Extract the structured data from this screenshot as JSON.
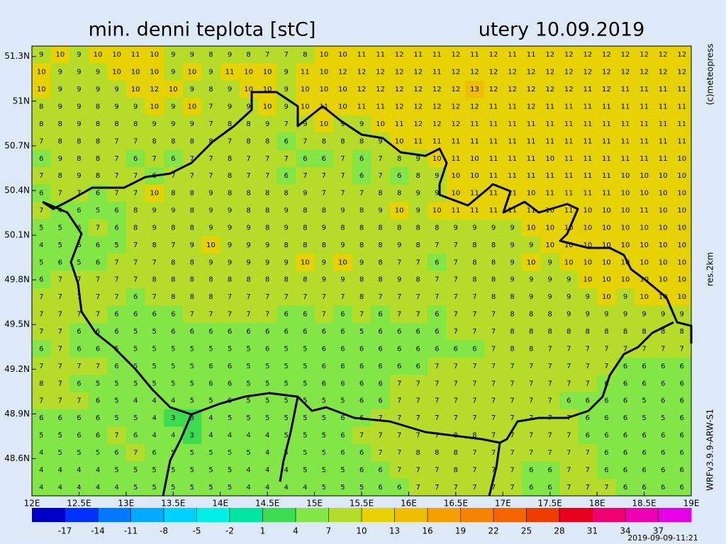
{
  "title": "min. denni teplota [stC]",
  "date": "utery 10.09.2019",
  "credit": "(c)meteopress",
  "resolution": "res.2km",
  "model": "WRFv3.9.9-ARW-S1",
  "timestamp": "2019-09-09-11:21",
  "map": {
    "xlim": [
      12,
      19
    ],
    "ylim": [
      48.35,
      51.37
    ],
    "xticks": [
      {
        "value": 12,
        "label": "12E"
      },
      {
        "value": 12.5,
        "label": "12.5E"
      },
      {
        "value": 13,
        "label": "13E"
      },
      {
        "value": 13.5,
        "label": "13.5E"
      },
      {
        "value": 14,
        "label": "14E"
      },
      {
        "value": 14.5,
        "label": "14.5E"
      },
      {
        "value": 15,
        "label": "15E"
      },
      {
        "value": 15.5,
        "label": "15.5E"
      },
      {
        "value": 16,
        "label": "16E"
      },
      {
        "value": 16.5,
        "label": "16.5E"
      },
      {
        "value": 17,
        "label": "17E"
      },
      {
        "value": 17.5,
        "label": "17.5E"
      },
      {
        "value": 18,
        "label": "18E"
      },
      {
        "value": 18.5,
        "label": "18.5E"
      },
      {
        "value": 19,
        "label": "19E"
      }
    ],
    "yticks": [
      {
        "value": 48.6,
        "label": "48.6N"
      },
      {
        "value": 48.9,
        "label": "48.9N"
      },
      {
        "value": 49.2,
        "label": "49.2N"
      },
      {
        "value": 49.5,
        "label": "49.5N"
      },
      {
        "value": 49.8,
        "label": "49.8N"
      },
      {
        "value": 50.1,
        "label": "50.1N"
      },
      {
        "value": 50.4,
        "label": "50.4N"
      },
      {
        "value": 50.7,
        "label": "50.7N"
      },
      {
        "value": 51,
        "label": "51N"
      },
      {
        "value": 51.3,
        "label": "51.3N"
      }
    ],
    "grid": [
      [
        9,
        10,
        9,
        10,
        10,
        11,
        10,
        9,
        9,
        8,
        9,
        8,
        7,
        7,
        8,
        10,
        10,
        11,
        11,
        12,
        11,
        11,
        12,
        11,
        12,
        11,
        11,
        12,
        12,
        12,
        12,
        12,
        12,
        12,
        12
      ],
      [
        10,
        9,
        9,
        9,
        10,
        10,
        10,
        9,
        10,
        9,
        11,
        10,
        10,
        9,
        11,
        10,
        12,
        12,
        12,
        12,
        12,
        11,
        12,
        12,
        12,
        12,
        12,
        12,
        12,
        12,
        12,
        12,
        12,
        12,
        12
      ],
      [
        10,
        9,
        9,
        9,
        9,
        10,
        12,
        10,
        9,
        8,
        9,
        10,
        10,
        9,
        10,
        10,
        10,
        12,
        12,
        12,
        12,
        12,
        12,
        13,
        12,
        12,
        12,
        12,
        12,
        11,
        12,
        11,
        11,
        11,
        11
      ],
      [
        8,
        9,
        9,
        8,
        9,
        9,
        10,
        9,
        10,
        7,
        9,
        9,
        10,
        9,
        10,
        11,
        10,
        11,
        11,
        12,
        12,
        12,
        12,
        12,
        11,
        11,
        12,
        11,
        11,
        11,
        11,
        11,
        11,
        11,
        11
      ],
      [
        8,
        8,
        9,
        8,
        8,
        8,
        9,
        9,
        9,
        7,
        8,
        8,
        9,
        7,
        9,
        10,
        9,
        9,
        10,
        11,
        12,
        12,
        12,
        11,
        11,
        11,
        11,
        11,
        11,
        11,
        11,
        11,
        11,
        11,
        11
      ],
      [
        7,
        8,
        8,
        8,
        7,
        7,
        8,
        8,
        8,
        8,
        7,
        8,
        8,
        6,
        7,
        8,
        8,
        8,
        9,
        10,
        11,
        11,
        11,
        11,
        11,
        11,
        11,
        11,
        11,
        11,
        11,
        11,
        11,
        11,
        11
      ],
      [
        6,
        9,
        8,
        8,
        7,
        6,
        7,
        6,
        7,
        7,
        8,
        7,
        7,
        7,
        6,
        6,
        7,
        6,
        7,
        8,
        9,
        10,
        11,
        10,
        11,
        11,
        11,
        10,
        11,
        11,
        11,
        11,
        11,
        11,
        10
      ],
      [
        7,
        8,
        9,
        8,
        7,
        7,
        6,
        7,
        7,
        7,
        8,
        7,
        7,
        6,
        7,
        7,
        7,
        6,
        7,
        6,
        8,
        9,
        10,
        10,
        11,
        11,
        11,
        11,
        11,
        11,
        11,
        10,
        10,
        10,
        10
      ],
      [
        6,
        7,
        7,
        6,
        7,
        7,
        10,
        8,
        8,
        9,
        8,
        8,
        8,
        8,
        9,
        7,
        7,
        7,
        8,
        8,
        9,
        9,
        10,
        11,
        11,
        11,
        10,
        11,
        11,
        11,
        11,
        10,
        10,
        10,
        10
      ],
      [
        7,
        4,
        6,
        5,
        6,
        8,
        9,
        9,
        8,
        9,
        9,
        8,
        8,
        9,
        8,
        8,
        9,
        8,
        9,
        10,
        9,
        10,
        11,
        11,
        11,
        11,
        11,
        10,
        11,
        10,
        10,
        10,
        11,
        10,
        10
      ],
      [
        5,
        5,
        6,
        7,
        6,
        8,
        9,
        8,
        8,
        9,
        9,
        9,
        8,
        9,
        8,
        9,
        8,
        8,
        8,
        8,
        8,
        8,
        9,
        9,
        9,
        9,
        10,
        10,
        10,
        10,
        10,
        10,
        10,
        10,
        10
      ],
      [
        4,
        5,
        6,
        6,
        5,
        7,
        8,
        7,
        9,
        10,
        9,
        9,
        9,
        8,
        8,
        8,
        9,
        8,
        8,
        9,
        8,
        7,
        7,
        8,
        8,
        9,
        9,
        10,
        10,
        10,
        10,
        10,
        10,
        10,
        10
      ],
      [
        5,
        6,
        5,
        6,
        7,
        7,
        7,
        8,
        8,
        9,
        9,
        9,
        9,
        9,
        10,
        9,
        10,
        9,
        8,
        7,
        7,
        6,
        7,
        8,
        8,
        9,
        10,
        9,
        10,
        10,
        10,
        10,
        10,
        10,
        10
      ],
      [
        6,
        7,
        7,
        7,
        7,
        7,
        8,
        8,
        8,
        8,
        8,
        8,
        8,
        8,
        8,
        9,
        9,
        8,
        8,
        9,
        8,
        7,
        7,
        8,
        8,
        9,
        9,
        9,
        9,
        10,
        10,
        10,
        10,
        10,
        10
      ],
      [
        7,
        7,
        7,
        7,
        7,
        6,
        7,
        8,
        8,
        8,
        7,
        7,
        7,
        7,
        7,
        7,
        7,
        8,
        7,
        7,
        7,
        7,
        7,
        7,
        8,
        8,
        9,
        9,
        9,
        9,
        10,
        9,
        10,
        10,
        10
      ],
      [
        7,
        7,
        7,
        7,
        6,
        6,
        6,
        6,
        7,
        7,
        7,
        7,
        7,
        6,
        6,
        7,
        6,
        7,
        6,
        7,
        7,
        6,
        7,
        7,
        7,
        8,
        8,
        8,
        9,
        9,
        9,
        9,
        9,
        9,
        9
      ],
      [
        7,
        7,
        6,
        6,
        6,
        5,
        5,
        6,
        6,
        6,
        6,
        6,
        6,
        6,
        6,
        6,
        6,
        5,
        6,
        6,
        6,
        6,
        7,
        7,
        7,
        8,
        8,
        8,
        8,
        8,
        8,
        8,
        8,
        8,
        8
      ],
      [
        6,
        7,
        6,
        6,
        5,
        5,
        5,
        5,
        5,
        5,
        5,
        5,
        6,
        5,
        5,
        6,
        6,
        6,
        6,
        6,
        6,
        6,
        6,
        6,
        7,
        8,
        8,
        7,
        7,
        7,
        7,
        7,
        7,
        7,
        7
      ],
      [
        7,
        7,
        7,
        7,
        6,
        5,
        5,
        5,
        5,
        6,
        6,
        5,
        5,
        5,
        5,
        6,
        6,
        6,
        6,
        6,
        6,
        7,
        7,
        7,
        7,
        7,
        7,
        7,
        7,
        7,
        7,
        6,
        6,
        6,
        6
      ],
      [
        8,
        7,
        6,
        5,
        5,
        5,
        5,
        5,
        5,
        6,
        6,
        5,
        5,
        5,
        5,
        6,
        6,
        6,
        6,
        7,
        7,
        7,
        7,
        7,
        7,
        7,
        7,
        7,
        7,
        7,
        6,
        6,
        6,
        6,
        6
      ],
      [
        7,
        7,
        7,
        6,
        5,
        4,
        4,
        4,
        5,
        5,
        6,
        5,
        5,
        5,
        5,
        5,
        5,
        6,
        6,
        7,
        7,
        7,
        7,
        7,
        7,
        7,
        7,
        7,
        6,
        6,
        6,
        6,
        5,
        6,
        6
      ],
      [
        6,
        6,
        6,
        6,
        5,
        5,
        4,
        3,
        3,
        4,
        5,
        5,
        5,
        5,
        5,
        5,
        6,
        6,
        7,
        7,
        7,
        7,
        7,
        7,
        7,
        7,
        7,
        7,
        7,
        6,
        6,
        6,
        5,
        5,
        6
      ],
      [
        5,
        5,
        6,
        6,
        7,
        6,
        4,
        4,
        3,
        4,
        4,
        4,
        4,
        5,
        5,
        5,
        6,
        7,
        7,
        7,
        7,
        7,
        8,
        8,
        7,
        7,
        7,
        7,
        7,
        6,
        6,
        6,
        6,
        6,
        6
      ],
      [
        4,
        5,
        5,
        5,
        6,
        7,
        6,
        5,
        5,
        5,
        5,
        5,
        4,
        5,
        5,
        5,
        6,
        6,
        7,
        7,
        8,
        8,
        8,
        7,
        7,
        7,
        7,
        7,
        7,
        7,
        6,
        6,
        6,
        6,
        6
      ],
      [
        4,
        4,
        4,
        4,
        5,
        5,
        5,
        5,
        5,
        5,
        5,
        4,
        4,
        4,
        5,
        5,
        5,
        6,
        6,
        7,
        7,
        7,
        8,
        7,
        7,
        7,
        6,
        6,
        7,
        7,
        6,
        6,
        6,
        6,
        6
      ],
      [
        4,
        4,
        4,
        4,
        4,
        5,
        5,
        5,
        5,
        5,
        5,
        4,
        4,
        4,
        4,
        5,
        5,
        5,
        6,
        6,
        7,
        7,
        7,
        7,
        7,
        7,
        6,
        6,
        7,
        7,
        7,
        6,
        6,
        6,
        6
      ]
    ]
  },
  "colorbar": {
    "lim": [
      -20,
      40
    ],
    "colors": [
      "#0000c8",
      "#0032ff",
      "#0078ff",
      "#00aaff",
      "#00d2ff",
      "#00f0e6",
      "#00e6a0",
      "#3cdc50",
      "#82e646",
      "#b4dc28",
      "#e6d200",
      "#f0be00",
      "#f5a000",
      "#f58200",
      "#f56400",
      "#f03c00",
      "#e6001e",
      "#f0006e",
      "#f000b4",
      "#e600e6"
    ],
    "ticks": [
      -17,
      -14,
      -11,
      -8,
      -5,
      -2,
      1,
      4,
      7,
      10,
      13,
      16,
      19,
      22,
      25,
      28,
      31,
      34,
      37
    ]
  }
}
